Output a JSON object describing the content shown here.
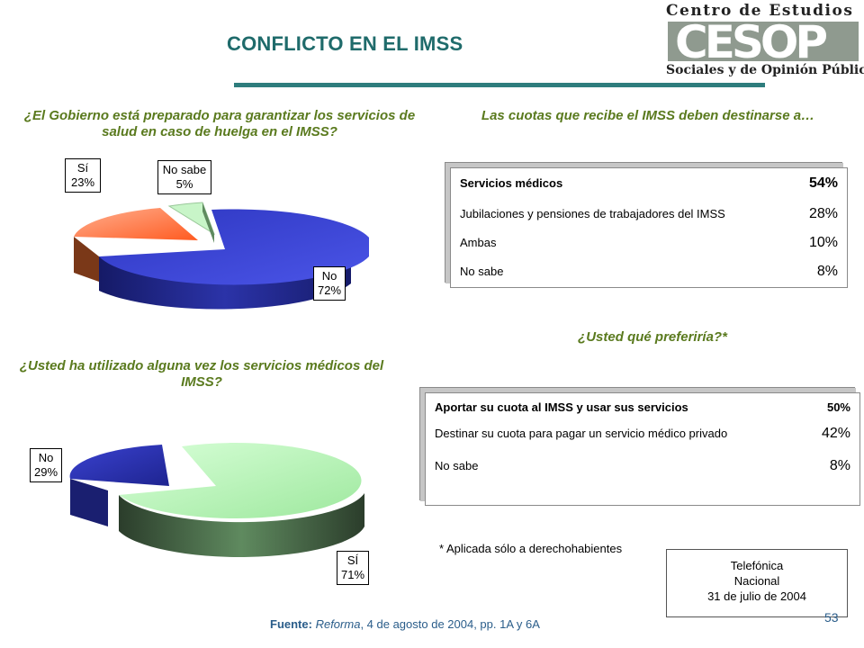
{
  "title": "CONFLICTO EN EL IMSS",
  "logo": {
    "line1": "Centro de Estudios",
    "mark": "CESOP",
    "line2": "Sociales y de Opinión Pública"
  },
  "q1": {
    "text": "¿El Gobierno está preparado para garantizar los servicios de salud en caso de huelga en el IMSS?"
  },
  "q2": {
    "text": "Las cuotas que recibe el IMSS deben destinarse a…"
  },
  "q3": {
    "text": "¿Usted ha utilizado alguna vez los servicios médicos del IMSS?"
  },
  "q4": {
    "text": "¿Usted qué preferiría?*"
  },
  "chart_data": [
    {
      "type": "pie",
      "categories": [
        "No",
        "Sí",
        "No sabe"
      ],
      "values": [
        72,
        23,
        5
      ],
      "labels": {
        "si": "Sí",
        "si_pct": "23%",
        "ns": "No sabe",
        "ns_pct": "5%",
        "no": "No",
        "no_pct": "72%"
      },
      "colors": [
        "#3a43c8",
        "#ff7a3c",
        "#c8f5c8"
      ]
    },
    {
      "type": "pie",
      "categories": [
        "Sí",
        "No"
      ],
      "values": [
        71,
        29
      ],
      "labels": {
        "no": "No",
        "no_pct": "29%",
        "si": "SÍ",
        "si_pct": "71%"
      },
      "colors": [
        "#b8f0b8",
        "#2f36b8"
      ]
    }
  ],
  "panel1": {
    "rows": [
      {
        "label": "Servicios médicos",
        "value": "54%"
      },
      {
        "label": "Jubilaciones y pensiones de trabajadores del IMSS",
        "value": "28%"
      },
      {
        "label": "Ambas",
        "value": "10%"
      },
      {
        "label": "No sabe",
        "value": "8%"
      }
    ]
  },
  "panel2": {
    "rows": [
      {
        "label": "Aportar su cuota al IMSS y usar sus servicios",
        "value": "50%"
      },
      {
        "label": "Destinar su cuota para pagar un servicio médico privado",
        "value": "42%"
      },
      {
        "label": "No sabe",
        "value": "8%"
      }
    ]
  },
  "note": "* Aplicada sólo a derechohabientes",
  "source_box": {
    "line1": "Telefónica",
    "line2": "Nacional",
    "line3": "31 de julio de 2004"
  },
  "source": {
    "label": "Fuente:",
    "pub": "Reforma",
    "rest": ", 4 de agosto de 2004, pp. 1A y 6A"
  },
  "page_number": "53"
}
